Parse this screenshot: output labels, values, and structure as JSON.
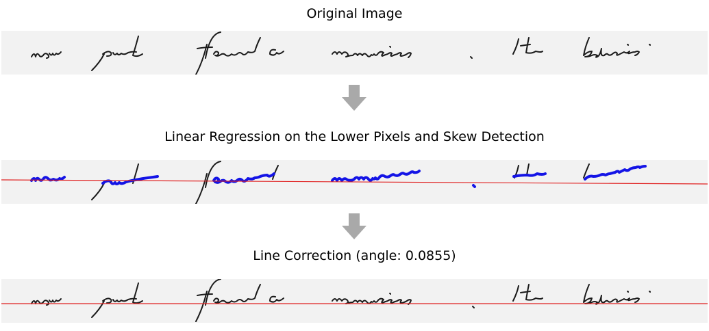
{
  "panels": [
    {
      "title": "Original Image"
    },
    {
      "title": "Linear Regression on the Lower Pixels and Skew Detection"
    },
    {
      "title": "Line Correction (angle: 0.0855)"
    }
  ],
  "handwriting_text": "now put forward nominees . He believes",
  "colors": {
    "ink": "#1a1a1a",
    "lower_pixels": "#1414e6",
    "regression_line": "#e02020",
    "arrow": "#a9a9a9",
    "panel_bg": "#f2f2f2"
  },
  "icons": [
    "down-arrow-icon",
    "down-arrow-icon"
  ]
}
